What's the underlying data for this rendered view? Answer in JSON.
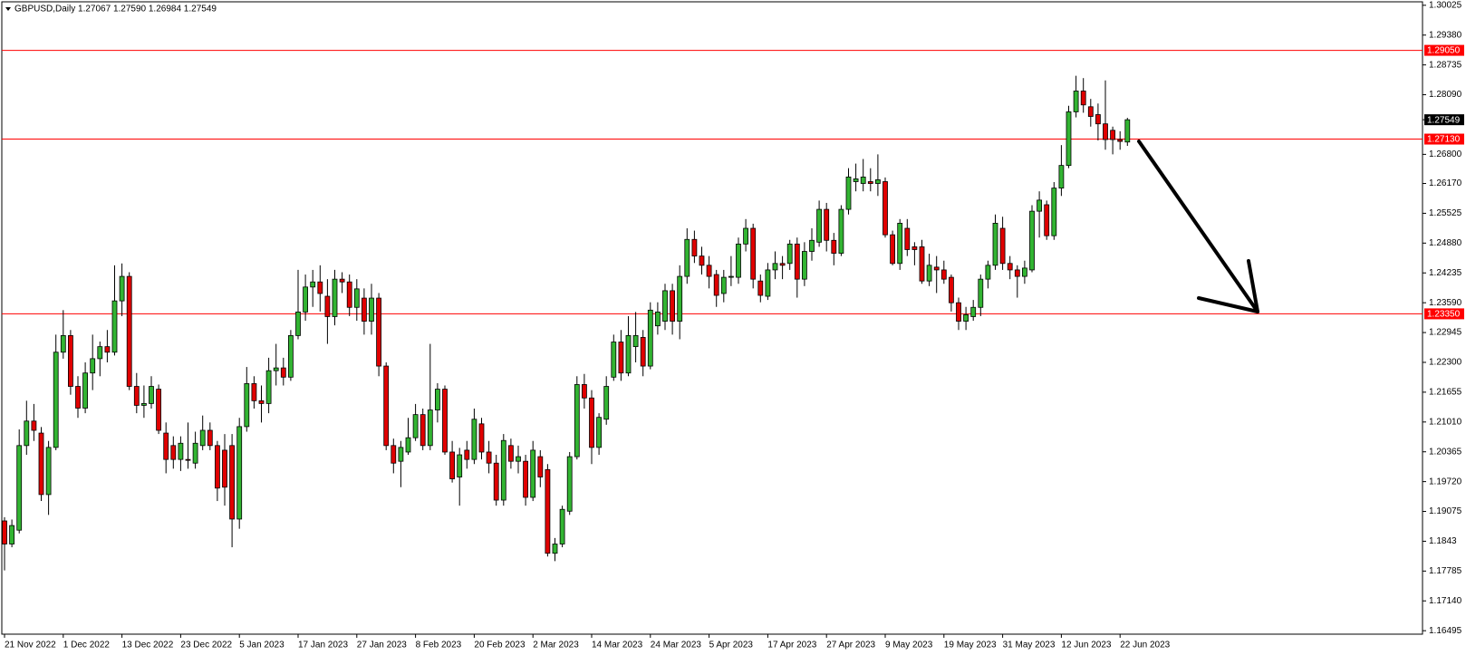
{
  "chart_data": {
    "type": "candlestick",
    "title": "GBPUSD,Daily  1.27067 1.27590 1.26984 1.27549",
    "categories": [
      "21 Nov 2022",
      null,
      null,
      null,
      null,
      null,
      null,
      null,
      "1 Dec 2022",
      null,
      null,
      null,
      null,
      null,
      null,
      null,
      "13 Dec 2022",
      null,
      null,
      null,
      null,
      null,
      null,
      null,
      "23 Dec 2022",
      null,
      null,
      null,
      null,
      null,
      null,
      null,
      "5 Jan 2023",
      null,
      null,
      null,
      null,
      null,
      null,
      null,
      "17 Jan 2023",
      null,
      null,
      null,
      null,
      null,
      null,
      null,
      "27 Jan 2023",
      null,
      null,
      null,
      null,
      null,
      null,
      null,
      "8 Feb 2023",
      null,
      null,
      null,
      null,
      null,
      null,
      null,
      "20 Feb 2023",
      null,
      null,
      null,
      null,
      null,
      null,
      null,
      "2 Mar 2023",
      null,
      null,
      null,
      null,
      null,
      null,
      null,
      "14 Mar 2023",
      null,
      null,
      null,
      null,
      null,
      null,
      null,
      "24 Mar 2023",
      null,
      null,
      null,
      null,
      null,
      null,
      null,
      "5 Apr 2023",
      null,
      null,
      null,
      null,
      null,
      null,
      null,
      "17 Apr 2023",
      null,
      null,
      null,
      null,
      null,
      null,
      null,
      "27 Apr 2023",
      null,
      null,
      null,
      null,
      null,
      null,
      null,
      "9 May 2023",
      null,
      null,
      null,
      null,
      null,
      null,
      null,
      "19 May 2023",
      null,
      null,
      null,
      null,
      null,
      null,
      null,
      "31 May 2023",
      null,
      null,
      null,
      null,
      null,
      null,
      null,
      "12 Jun 2023",
      null,
      null,
      null,
      null,
      null,
      null,
      null,
      "22 Jun 2023",
      null
    ],
    "open": [
      1.1887,
      1.1837,
      1.1867,
      1.205,
      1.2103,
      1.2077,
      1.1944,
      1.2046,
      1.2252,
      1.2288,
      1.2178,
      1.2131,
      1.2207,
      1.2238,
      1.2264,
      1.2252,
      1.2363,
      1.2416,
      1.2178,
      1.2137,
      1.2141,
      1.2172,
      1.2077,
      1.205,
      1.202,
      1.202,
      1.2012,
      1.205,
      1.2083,
      1.205,
      1.204,
      1.205,
      1.1891,
      1.2091,
      1.2184,
      1.2147,
      1.2141,
      1.2212,
      1.2218,
      1.2198,
      1.2288,
      1.2339,
      1.2393,
      1.2404,
      1.2373,
      1.2329,
      1.241,
      1.2404,
      1.2349,
      1.2369,
      1.2319,
      1.2369,
      1.2222,
      1.205,
      1.2016,
      1.2036,
      1.2067,
      1.2117,
      1.205,
      1.2127,
      1.2172,
      1.2036,
      1.1982,
      1.204,
      1.202,
      1.2097,
      1.2036,
      1.2012,
      1.1932,
      1.205,
      1.2016,
      1.2016,
      1.1938,
      1.2026,
      1.1998,
      1.1817,
      1.1837,
      1.1908,
      1.2026,
      1.2182,
      1.2153,
      1.2046,
      1.2107,
      1.2198,
      1.2274,
      1.2207,
      1.2264,
      1.2284,
      1.2222,
      1.2309,
      1.2319,
      1.2385,
      1.2319,
      1.2416,
      1.2496,
      1.246,
      1.244,
      1.242,
      1.2379,
      1.2414,
      1.2414,
      1.2486,
      1.252,
      1.2406,
      1.2373,
      1.243,
      1.2444,
      1.2444,
      1.2486,
      1.241,
      1.247,
      1.249,
      1.2561,
      1.2494,
      1.2466,
      1.2561,
      1.2621,
      1.2617,
      1.2621,
      1.2617,
      1.2621,
      1.2506,
      1.2444,
      1.252,
      1.248,
      1.248,
      1.2406,
      1.2436,
      1.243,
      1.2414,
      1.2359,
      1.2319,
      1.2329,
      1.2349,
      1.241,
      1.244,
      1.252,
      1.2444,
      1.243,
      1.2416,
      1.243,
      1.2557,
      1.2571,
      1.2504,
      1.2607,
      1.2656,
      1.2772,
      1.2817,
      1.2783,
      1.2766,
      1.2746,
      1.2732,
      1.2712,
      1.27067
    ],
    "high": [
      1.1895,
      1.189,
      1.2085,
      1.2147,
      1.214,
      1.209,
      1.206,
      1.229,
      1.2343,
      1.23,
      1.22,
      1.223,
      1.229,
      1.2275,
      1.23,
      1.244,
      1.2444,
      1.2425,
      1.2207,
      1.218,
      1.22,
      1.2182,
      1.21,
      1.207,
      1.207,
      1.21,
      1.208,
      1.2115,
      1.21,
      1.206,
      1.2075,
      1.2075,
      1.211,
      1.222,
      1.22,
      1.218,
      1.224,
      1.227,
      1.224,
      1.23,
      1.243,
      1.242,
      1.243,
      1.244,
      1.241,
      1.243,
      1.2425,
      1.242,
      1.241,
      1.239,
      1.24,
      1.238,
      1.223,
      1.2065,
      1.206,
      1.211,
      1.214,
      1.213,
      1.227,
      1.2185,
      1.218,
      1.206,
      1.2045,
      1.206,
      1.213,
      1.211,
      1.206,
      1.203,
      1.2075,
      1.2065,
      1.205,
      1.203,
      1.206,
      1.204,
      1.201,
      1.185,
      1.192,
      1.2036,
      1.22,
      1.2205,
      1.217,
      1.212,
      1.22,
      1.229,
      1.23,
      1.233,
      1.2339,
      1.23,
      1.236,
      1.236,
      1.24,
      1.24,
      1.244,
      1.252,
      1.2515,
      1.248,
      1.246,
      1.243,
      1.243,
      1.246,
      1.25,
      1.254,
      1.253,
      1.242,
      1.2445,
      1.247,
      1.246,
      1.2495,
      1.25,
      1.249,
      1.252,
      1.258,
      1.2575,
      1.251,
      1.257,
      1.265,
      1.266,
      1.267,
      1.265,
      1.268,
      1.263,
      1.2515,
      1.254,
      1.254,
      1.249,
      1.2495,
      1.2465,
      1.246,
      1.245,
      1.242,
      1.237,
      1.235,
      1.2365,
      1.242,
      1.245,
      1.255,
      1.2545,
      1.246,
      1.244,
      1.245,
      1.257,
      1.26,
      1.258,
      1.262,
      1.27,
      1.2785,
      1.285,
      1.2845,
      1.28,
      1.279,
      1.284,
      1.274,
      1.273,
      1.2759
    ],
    "low": [
      1.178,
      1.183,
      1.186,
      1.203,
      1.206,
      1.193,
      1.19,
      1.204,
      1.2238,
      1.216,
      1.211,
      1.212,
      1.217,
      1.22,
      1.223,
      1.2245,
      1.233,
      1.217,
      1.212,
      1.211,
      1.213,
      1.2075,
      1.199,
      1.2,
      1.1995,
      1.2,
      1.2,
      1.204,
      1.204,
      1.193,
      1.192,
      1.183,
      1.187,
      1.208,
      1.213,
      1.21,
      1.212,
      1.218,
      1.218,
      1.219,
      1.228,
      1.232,
      1.235,
      1.234,
      1.227,
      1.231,
      1.238,
      1.233,
      1.232,
      1.229,
      1.229,
      1.22,
      1.204,
      1.199,
      1.196,
      1.203,
      1.206,
      1.204,
      1.204,
      1.21,
      1.203,
      1.197,
      1.192,
      1.2,
      1.201,
      1.202,
      1.199,
      1.192,
      1.192,
      1.2,
      1.199,
      1.192,
      1.193,
      1.196,
      1.181,
      1.18,
      1.183,
      1.19,
      1.202,
      1.213,
      1.201,
      1.203,
      1.2095,
      1.219,
      1.219,
      1.22,
      1.223,
      1.22,
      1.2215,
      1.229,
      1.23,
      1.229,
      1.228,
      1.24,
      1.2445,
      1.242,
      1.239,
      1.235,
      1.236,
      1.2395,
      1.24,
      1.247,
      1.239,
      1.236,
      1.2365,
      1.241,
      1.241,
      1.243,
      1.237,
      1.2395,
      1.245,
      1.248,
      1.247,
      1.244,
      1.246,
      1.255,
      1.26,
      1.26,
      1.26,
      1.259,
      1.25,
      1.244,
      1.243,
      1.246,
      1.244,
      1.24,
      1.2395,
      1.238,
      1.24,
      1.234,
      1.23,
      1.23,
      1.232,
      1.233,
      1.239,
      1.243,
      1.243,
      1.241,
      1.237,
      1.24,
      1.2425,
      1.25,
      1.2495,
      1.2495,
      1.259,
      1.265,
      1.276,
      1.277,
      1.274,
      1.271,
      1.269,
      1.268,
      1.269,
      1.26984
    ],
    "close": [
      1.1837,
      1.1877,
      1.205,
      1.2103,
      1.2083,
      1.1944,
      1.2046,
      1.2252,
      1.2288,
      1.2178,
      1.2131,
      1.2207,
      1.2238,
      1.2264,
      1.2252,
      1.2363,
      1.2416,
      1.2178,
      1.2137,
      1.2141,
      1.2178,
      1.2083,
      1.202,
      1.202,
      1.2055,
      1.2018,
      1.2055,
      1.2083,
      1.205,
      1.1958,
      1.196,
      1.1891,
      1.2091,
      1.2184,
      1.2147,
      1.2141,
      1.2212,
      1.2218,
      1.2198,
      1.2288,
      1.2339,
      1.2393,
      1.2404,
      1.2379,
      1.2329,
      1.241,
      1.2404,
      1.2349,
      1.2389,
      1.2319,
      1.2369,
      1.2222,
      1.205,
      1.2012,
      1.2046,
      1.2067,
      1.2117,
      1.205,
      1.2127,
      1.2172,
      1.2036,
      1.1978,
      1.203,
      1.202,
      1.2107,
      1.2036,
      1.2012,
      1.1932,
      1.2061,
      1.2016,
      1.2026,
      1.1938,
      1.204,
      1.1982,
      1.1817,
      1.1837,
      1.1912,
      1.2026,
      1.2182,
      1.2153,
      1.2046,
      1.2111,
      1.2178,
      1.2274,
      1.2207,
      1.2288,
      1.2288,
      1.2222,
      1.2343,
      1.2339,
      1.2385,
      1.2319,
      1.2416,
      1.2496,
      1.246,
      1.244,
      1.2416,
      1.2375,
      1.2414,
      1.2416,
      1.2486,
      1.252,
      1.241,
      1.2375,
      1.243,
      1.2444,
      1.244,
      1.2486,
      1.241,
      1.247,
      1.2494,
      1.2561,
      1.2494,
      1.2466,
      1.2561,
      1.2631,
      1.2627,
      1.2631,
      1.2617,
      1.2625,
      1.2506,
      1.2444,
      1.2531,
      1.2474,
      1.2474,
      1.2406,
      1.244,
      1.243,
      1.241,
      1.2359,
      1.2319,
      1.2333,
      1.2349,
      1.241,
      1.244,
      1.2531,
      1.2444,
      1.243,
      1.2416,
      1.2434,
      1.2557,
      1.2581,
      1.2504,
      1.2607,
      1.2656,
      1.2772,
      1.2817,
      1.2787,
      1.2762,
      1.2746,
      1.2712,
      1.2712,
      1.2708,
      1.27549
    ],
    "up_color": "#32b432",
    "down_color": "#e00000",
    "outline_color": "#000000",
    "ylim": [
      1.1642,
      1.301
    ],
    "yticks": [
      1.30025,
      {
        "value": 1.2938,
        "label": "1.29380"
      },
      1.28735,
      {
        "value": 1.2809,
        "label": "1.28090"
      },
      {
        "value": 1.268,
        "label": "1.26800"
      },
      {
        "value": 1.2617,
        "label": "1.26170"
      },
      1.25525,
      {
        "value": 1.2488,
        "label": "1.24880"
      },
      1.24235,
      {
        "value": 1.2359,
        "label": "1.23590"
      },
      1.22945,
      {
        "value": 1.223,
        "label": "1.22300"
      },
      1.21655,
      {
        "value": 1.2101,
        "label": "1.21010"
      },
      1.20365,
      {
        "value": 1.1972,
        "label": "1.19720"
      },
      1.19075,
      1.1843,
      1.17785,
      {
        "value": 1.1714,
        "label": "1.17140"
      },
      1.16495
    ],
    "levels": [
      {
        "value": 1.2905,
        "label": "1.29050"
      },
      {
        "value": 1.2713,
        "label": "1.27130"
      },
      {
        "value": 1.2335,
        "label": "1.23350"
      }
    ],
    "level_color": "#ff0000",
    "current_price": 1.27549
  }
}
